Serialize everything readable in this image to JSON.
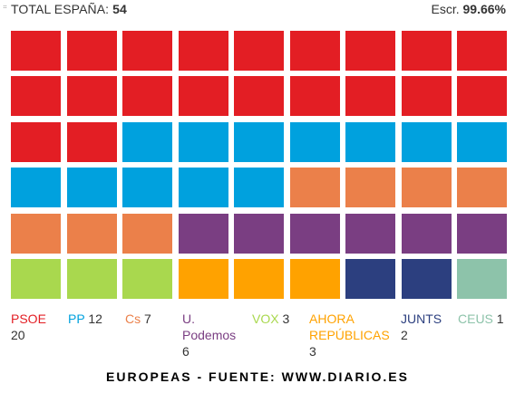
{
  "header": {
    "label": "TOTAL ESPAÑA:",
    "total": "54",
    "escr_label": "Escr.",
    "escr_value": "99.66%"
  },
  "parties": [
    {
      "name": "PSOE",
      "seats": "20",
      "color": "#e31e24"
    },
    {
      "name": "PP",
      "seats": "12",
      "color": "#00a1de"
    },
    {
      "name": "Cs",
      "seats": "7",
      "color": "#eb804a"
    },
    {
      "name": "U. Podemos",
      "seats": "6",
      "color": "#7a3e82"
    },
    {
      "name": "VOX",
      "seats": "3",
      "color": "#a9d84e"
    },
    {
      "name": "AHORA REPÚBLICAS",
      "seats": "3",
      "color": "#ffa200"
    },
    {
      "name": "JUNTS",
      "seats": "2",
      "color": "#2c3f7f"
    },
    {
      "name": "CEUS",
      "seats": "1",
      "color": "#8dc3aa"
    }
  ],
  "footer": "EUROPEAS - FUENTE: WWW.DIARIO.ES"
}
